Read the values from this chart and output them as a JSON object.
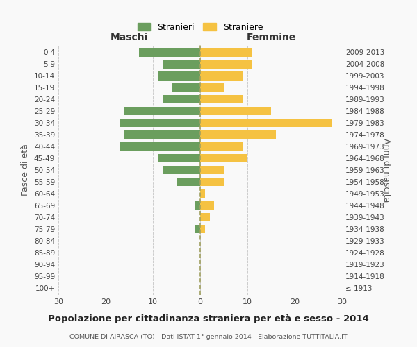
{
  "age_groups": [
    "100+",
    "95-99",
    "90-94",
    "85-89",
    "80-84",
    "75-79",
    "70-74",
    "65-69",
    "60-64",
    "55-59",
    "50-54",
    "45-49",
    "40-44",
    "35-39",
    "30-34",
    "25-29",
    "20-24",
    "15-19",
    "10-14",
    "5-9",
    "0-4"
  ],
  "birth_years": [
    "≤ 1913",
    "1914-1918",
    "1919-1923",
    "1924-1928",
    "1929-1933",
    "1934-1938",
    "1939-1943",
    "1944-1948",
    "1949-1953",
    "1954-1958",
    "1959-1963",
    "1964-1968",
    "1969-1973",
    "1974-1978",
    "1979-1983",
    "1984-1988",
    "1989-1993",
    "1994-1998",
    "1999-2003",
    "2004-2008",
    "2009-2013"
  ],
  "maschi": [
    0,
    0,
    0,
    0,
    0,
    1,
    0,
    1,
    0,
    5,
    8,
    9,
    17,
    16,
    17,
    16,
    8,
    6,
    9,
    8,
    13
  ],
  "femmine": [
    0,
    0,
    0,
    0,
    0,
    1,
    2,
    3,
    1,
    5,
    5,
    10,
    9,
    16,
    28,
    15,
    9,
    5,
    9,
    11,
    11
  ],
  "color_maschi": "#6b9e5e",
  "color_femmine": "#f5c242",
  "color_grid": "#cccccc",
  "color_centerline": "#a0a060",
  "title": "Popolazione per cittadinanza straniera per età e sesso - 2014",
  "subtitle": "COMUNE DI AIRASCA (TO) - Dati ISTAT 1° gennaio 2014 - Elaborazione TUTTITALIA.IT",
  "label_maschi": "Maschi",
  "label_femmine": "Femmine",
  "ylabel_left": "Fasce di età",
  "ylabel_right": "Anni di nascita",
  "legend_maschi": "Stranieri",
  "legend_femmine": "Straniere",
  "xlim": 30,
  "background_color": "#f9f9f9"
}
